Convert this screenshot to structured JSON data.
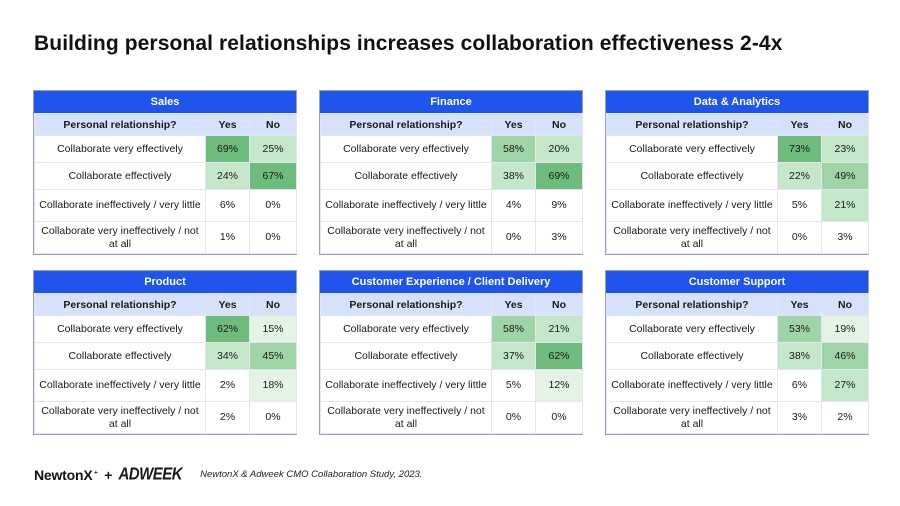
{
  "title": "Building personal relationships increases collaboration effectiveness 2-4x",
  "colors": {
    "header_blue": "#1f55ec",
    "subhead_bg": "#d6e1fb",
    "green_scale": [
      "#ffffff",
      "#e4f3e6",
      "#c4e6c9",
      "#9fd3a8",
      "#6dbc7b"
    ]
  },
  "panels": [
    {
      "name": "Sales",
      "col_header": "Personal relationship?",
      "yes": "Yes",
      "no": "No",
      "rows": [
        {
          "label": "Collaborate very effectively",
          "yes": "69%",
          "no": "25%"
        },
        {
          "label": "Collaborate effectively",
          "yes": "24%",
          "no": "67%"
        },
        {
          "label": "Collaborate ineffectively / very little",
          "yes": "6%",
          "no": "0%"
        },
        {
          "label": "Collaborate very ineffectively / not at all",
          "yes": "1%",
          "no": "0%"
        }
      ]
    },
    {
      "name": "Finance",
      "col_header": "Personal relationship?",
      "yes": "Yes",
      "no": "No",
      "rows": [
        {
          "label": "Collaborate very effectively",
          "yes": "58%",
          "no": "20%"
        },
        {
          "label": "Collaborate effectively",
          "yes": "38%",
          "no": "69%"
        },
        {
          "label": "Collaborate ineffectively / very little",
          "yes": "4%",
          "no": "9%"
        },
        {
          "label": "Collaborate very ineffectively / not at all",
          "yes": "0%",
          "no": "3%"
        }
      ]
    },
    {
      "name": "Data & Analytics",
      "col_header": "Personal relationship?",
      "yes": "Yes",
      "no": "No",
      "rows": [
        {
          "label": "Collaborate very effectively",
          "yes": "73%",
          "no": "23%"
        },
        {
          "label": "Collaborate effectively",
          "yes": "22%",
          "no": "49%"
        },
        {
          "label": "Collaborate ineffectively / very little",
          "yes": "5%",
          "no": "21%"
        },
        {
          "label": "Collaborate very ineffectively / not at all",
          "yes": "0%",
          "no": "3%"
        }
      ]
    },
    {
      "name": "Product",
      "col_header": "Personal relationship?",
      "yes": "Yes",
      "no": "No",
      "rows": [
        {
          "label": "Collaborate very effectively",
          "yes": "62%",
          "no": "15%"
        },
        {
          "label": "Collaborate effectively",
          "yes": "34%",
          "no": "45%"
        },
        {
          "label": "Collaborate ineffectively / very little",
          "yes": "2%",
          "no": "18%"
        },
        {
          "label": "Collaborate very ineffectively / not at all",
          "yes": "2%",
          "no": "0%"
        }
      ]
    },
    {
      "name": "Customer Experience / Client Delivery",
      "col_header": "Personal relationship?",
      "yes": "Yes",
      "no": "No",
      "rows": [
        {
          "label": "Collaborate very effectively",
          "yes": "58%",
          "no": "21%"
        },
        {
          "label": "Collaborate effectively",
          "yes": "37%",
          "no": "62%"
        },
        {
          "label": "Collaborate ineffectively / very little",
          "yes": "5%",
          "no": "12%"
        },
        {
          "label": "Collaborate very ineffectively / not at all",
          "yes": "0%",
          "no": "0%"
        }
      ]
    },
    {
      "name": "Customer Support",
      "col_header": "Personal relationship?",
      "yes": "Yes",
      "no": "No",
      "rows": [
        {
          "label": "Collaborate very effectively",
          "yes": "53%",
          "no": "19%"
        },
        {
          "label": "Collaborate effectively",
          "yes": "38%",
          "no": "46%"
        },
        {
          "label": "Collaborate ineffectively / very little",
          "yes": "6%",
          "no": "27%"
        },
        {
          "label": "Collaborate very ineffectively / not at all",
          "yes": "3%",
          "no": "2%"
        }
      ]
    }
  ],
  "footer": {
    "logo_newtonx": "NewtonX",
    "plus": "+",
    "logo_adweek": "ADWEEK",
    "source": "NewtonX & Adweek CMO Collaboration Study, 2023."
  }
}
